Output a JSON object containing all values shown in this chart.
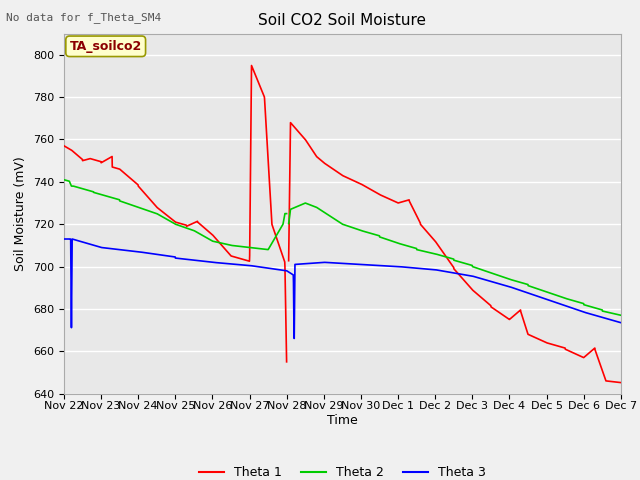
{
  "title": "Soil CO2 Soil Moisture",
  "ylabel": "Soil Moisture (mV)",
  "xlabel": "Time",
  "top_left_text": "No data for f_Theta_SM4",
  "annotation_box": "TA_soilco2",
  "ylim": [
    640,
    810
  ],
  "yticks": [
    640,
    660,
    680,
    700,
    720,
    740,
    760,
    780,
    800
  ],
  "xtick_labels": [
    "Nov 22",
    "Nov 23",
    "Nov 24",
    "Nov 25",
    "Nov 26",
    "Nov 27",
    "Nov 28",
    "Nov 29",
    "Nov 30",
    "Dec 1",
    "Dec 2",
    "Dec 3",
    "Dec 4",
    "Dec 5",
    "Dec 6",
    "Dec 7"
  ],
  "bg_color": "#e8e8e8",
  "fig_color": "#f0f0f0",
  "grid_color": "#ffffff",
  "line1_color": "#ff0000",
  "line2_color": "#00cc00",
  "line3_color": "#0000ff",
  "legend_labels": [
    "Theta 1",
    "Theta 2",
    "Theta 3"
  ],
  "title_fontsize": 11,
  "axis_fontsize": 9,
  "tick_fontsize": 8,
  "lw": 1.2,
  "annot_color": "#8b0000",
  "annot_bg": "#ffffcc",
  "annot_edge": "#999900"
}
